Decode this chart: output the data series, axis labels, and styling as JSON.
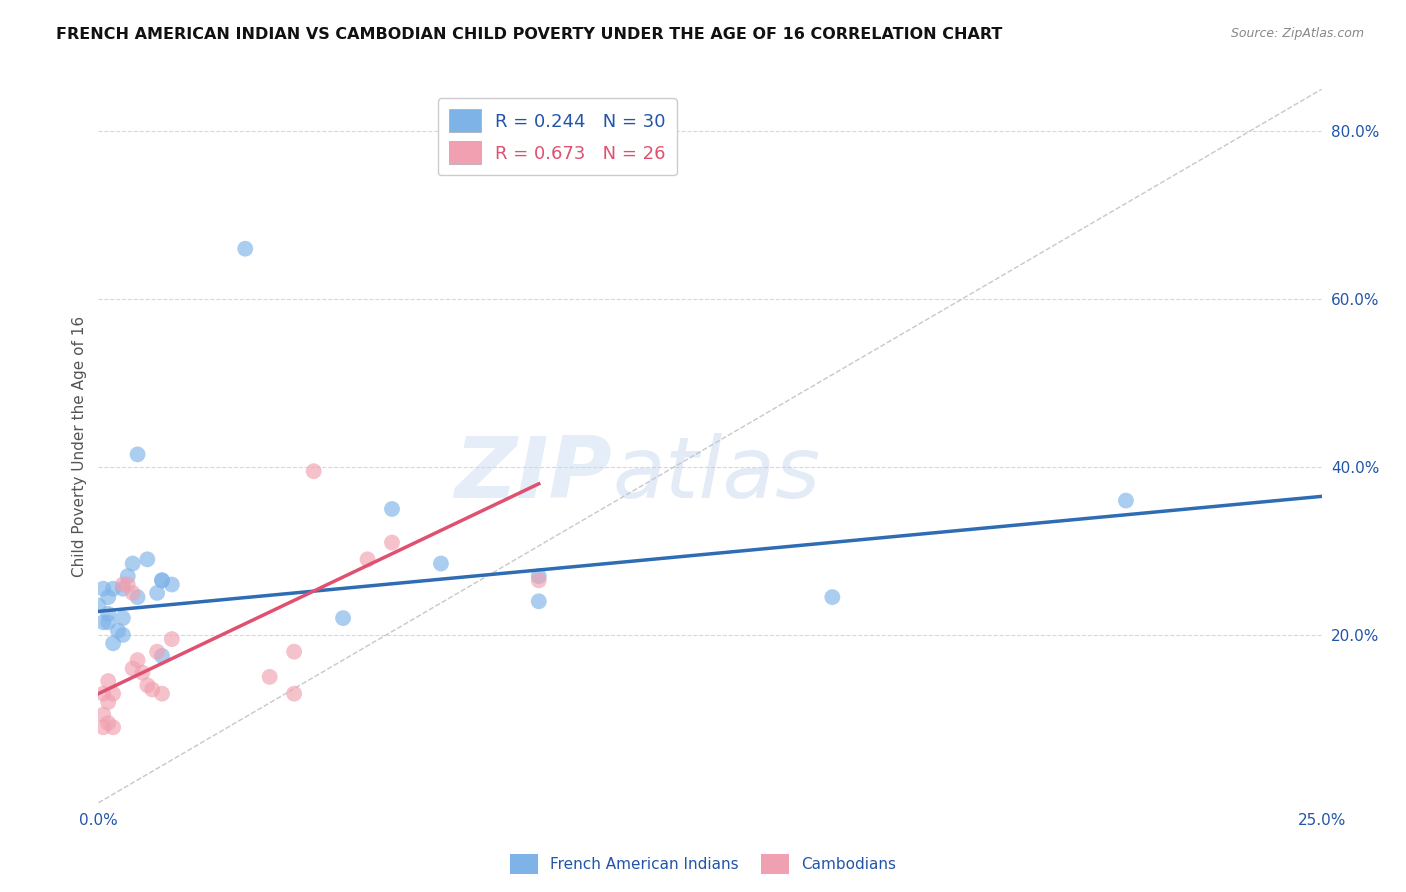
{
  "title": "FRENCH AMERICAN INDIAN VS CAMBODIAN CHILD POVERTY UNDER THE AGE OF 16 CORRELATION CHART",
  "source": "Source: ZipAtlas.com",
  "ylabel": "Child Poverty Under the Age of 16",
  "xmin": 0.0,
  "xmax": 0.25,
  "ymin": 0.0,
  "ymax": 0.85,
  "x_ticks": [
    0.0,
    0.05,
    0.1,
    0.15,
    0.2,
    0.25
  ],
  "x_tick_labels": [
    "0.0%",
    "",
    "",
    "",
    "",
    "25.0%"
  ],
  "y_ticks_right": [
    0.2,
    0.4,
    0.6,
    0.8
  ],
  "y_tick_labels_right": [
    "20.0%",
    "40.0%",
    "60.0%",
    "80.0%"
  ],
  "blue_scatter": [
    [
      0.008,
      0.245
    ],
    [
      0.005,
      0.22
    ],
    [
      0.003,
      0.255
    ],
    [
      0.002,
      0.215
    ],
    [
      0.004,
      0.205
    ],
    [
      0.001,
      0.255
    ],
    [
      0.0,
      0.235
    ],
    [
      0.001,
      0.215
    ],
    [
      0.005,
      0.2
    ],
    [
      0.003,
      0.19
    ],
    [
      0.006,
      0.27
    ],
    [
      0.007,
      0.285
    ],
    [
      0.002,
      0.225
    ],
    [
      0.005,
      0.255
    ],
    [
      0.002,
      0.245
    ],
    [
      0.008,
      0.415
    ],
    [
      0.01,
      0.29
    ],
    [
      0.013,
      0.265
    ],
    [
      0.012,
      0.25
    ],
    [
      0.013,
      0.175
    ],
    [
      0.013,
      0.265
    ],
    [
      0.015,
      0.26
    ],
    [
      0.03,
      0.66
    ],
    [
      0.05,
      0.22
    ],
    [
      0.06,
      0.35
    ],
    [
      0.07,
      0.285
    ],
    [
      0.09,
      0.27
    ],
    [
      0.09,
      0.24
    ],
    [
      0.15,
      0.245
    ],
    [
      0.21,
      0.36
    ]
  ],
  "pink_scatter": [
    [
      0.002,
      0.145
    ],
    [
      0.001,
      0.13
    ],
    [
      0.002,
      0.12
    ],
    [
      0.003,
      0.13
    ],
    [
      0.001,
      0.105
    ],
    [
      0.001,
      0.09
    ],
    [
      0.002,
      0.095
    ],
    [
      0.003,
      0.09
    ],
    [
      0.005,
      0.26
    ],
    [
      0.006,
      0.26
    ],
    [
      0.007,
      0.25
    ],
    [
      0.007,
      0.16
    ],
    [
      0.008,
      0.17
    ],
    [
      0.009,
      0.155
    ],
    [
      0.01,
      0.14
    ],
    [
      0.011,
      0.135
    ],
    [
      0.012,
      0.18
    ],
    [
      0.013,
      0.13
    ],
    [
      0.015,
      0.195
    ],
    [
      0.035,
      0.15
    ],
    [
      0.04,
      0.18
    ],
    [
      0.04,
      0.13
    ],
    [
      0.044,
      0.395
    ],
    [
      0.055,
      0.29
    ],
    [
      0.06,
      0.31
    ],
    [
      0.09,
      0.265
    ]
  ],
  "blue_line_x": [
    0.0,
    0.25
  ],
  "blue_line_y": [
    0.228,
    0.365
  ],
  "pink_line_x": [
    0.0,
    0.09
  ],
  "pink_line_y": [
    0.13,
    0.38
  ],
  "diag_line_x": [
    0.0,
    0.25
  ],
  "diag_line_y": [
    0.0,
    0.85
  ],
  "watermark_zip": "ZIP",
  "watermark_atlas": "atlas",
  "background_color": "#ffffff",
  "grid_color": "#d8d8d8",
  "blue_scatter_color": "#7EB3E8",
  "pink_scatter_color": "#F0A0B0",
  "blue_line_color": "#2E6DB4",
  "pink_line_color": "#E05070",
  "diag_line_color": "#c8c8c8",
  "legend1_blue_text": "R = 0.244",
  "legend1_blue_n": "N = 30",
  "legend1_pink_text": "R = 0.673",
  "legend1_pink_n": "N = 26",
  "legend2_blue": "French American Indians",
  "legend2_pink": "Cambodians",
  "text_blue_color": "#2255AA",
  "text_pink_color": "#E05070",
  "text_gray_color": "#888888",
  "title_color": "#111111"
}
